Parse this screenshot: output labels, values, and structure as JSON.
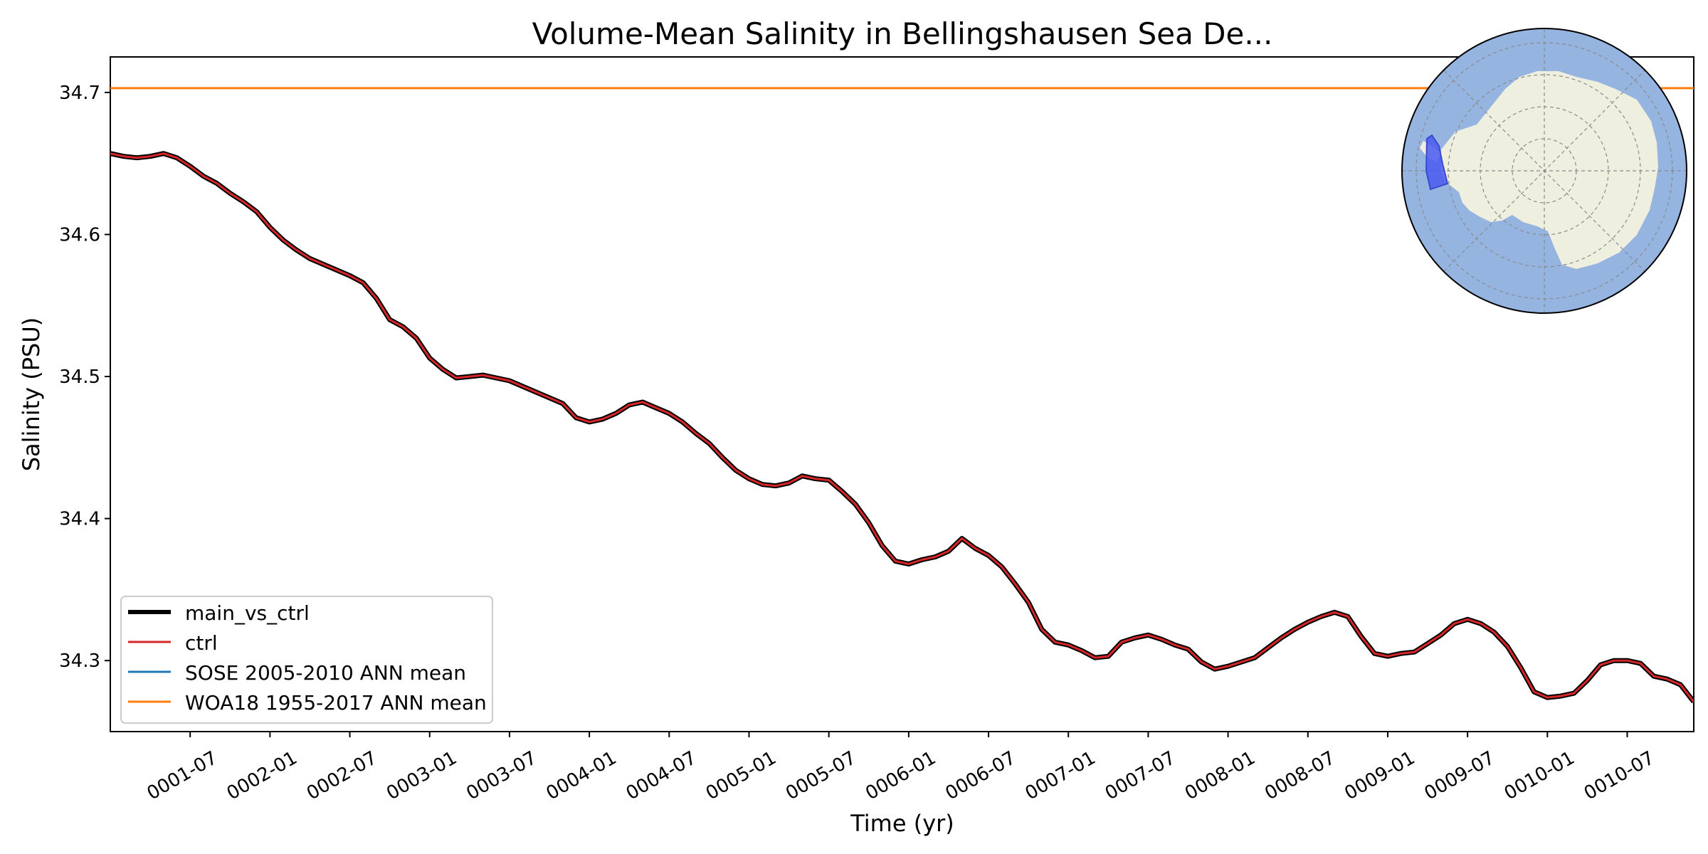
{
  "chart_data": {
    "type": "line",
    "title": "Volume-Mean Salinity in Bellingshausen Sea De...",
    "xlabel": "Time (yr)",
    "ylabel": "Salinity (PSU)",
    "xlim": [
      "0001-01",
      "0010-12"
    ],
    "ylim": [
      34.25,
      34.725
    ],
    "x_ticks": [
      "0001-07",
      "0002-01",
      "0002-07",
      "0003-01",
      "0003-07",
      "0004-01",
      "0004-07",
      "0005-01",
      "0005-07",
      "0006-01",
      "0006-07",
      "0007-01",
      "0007-07",
      "0008-01",
      "0008-07",
      "0009-01",
      "0009-07",
      "0010-01",
      "0010-07"
    ],
    "y_ticks": [
      "34.3",
      "34.4",
      "34.5",
      "34.6",
      "34.7"
    ],
    "grid": false,
    "legend_placement": "lower-left",
    "series": [
      {
        "name": "main_vs_ctrl",
        "color": "#000000",
        "x": [
          "0001-01",
          "0001-02",
          "0001-03",
          "0001-04",
          "0001-05",
          "0001-06",
          "0001-07",
          "0001-08",
          "0001-09",
          "0001-10",
          "0001-11",
          "0001-12",
          "0002-01",
          "0002-02",
          "0002-03",
          "0002-04",
          "0002-05",
          "0002-06",
          "0002-07",
          "0002-08",
          "0002-09",
          "0002-10",
          "0002-11",
          "0002-12",
          "0003-01",
          "0003-02",
          "0003-03",
          "0003-04",
          "0003-05",
          "0003-06",
          "0003-07",
          "0003-08",
          "0003-09",
          "0003-10",
          "0003-11",
          "0003-12",
          "0004-01",
          "0004-02",
          "0004-03",
          "0004-04",
          "0004-05",
          "0004-06",
          "0004-07",
          "0004-08",
          "0004-09",
          "0004-10",
          "0004-11",
          "0004-12",
          "0005-01",
          "0005-02",
          "0005-03",
          "0005-04",
          "0005-05",
          "0005-06",
          "0005-07",
          "0005-08",
          "0005-09",
          "0005-10",
          "0005-11",
          "0005-12",
          "0006-01",
          "0006-02",
          "0006-03",
          "0006-04",
          "0006-05",
          "0006-06",
          "0006-07",
          "0006-08",
          "0006-09",
          "0006-10",
          "0006-11",
          "0006-12",
          "0007-01",
          "0007-02",
          "0007-03",
          "0007-04",
          "0007-05",
          "0007-06",
          "0007-07",
          "0007-08",
          "0007-09",
          "0007-10",
          "0007-11",
          "0007-12",
          "0008-01",
          "0008-02",
          "0008-03",
          "0008-04",
          "0008-05",
          "0008-06",
          "0008-07",
          "0008-08",
          "0008-09",
          "0008-10",
          "0008-11",
          "0008-12",
          "0009-01",
          "0009-02",
          "0009-03",
          "0009-04",
          "0009-05",
          "0009-06",
          "0009-07",
          "0009-08",
          "0009-09",
          "0009-10",
          "0009-11",
          "0009-12",
          "0010-01",
          "0010-02",
          "0010-03",
          "0010-04",
          "0010-05",
          "0010-06",
          "0010-07",
          "0010-08",
          "0010-09",
          "0010-10",
          "0010-11",
          "0010-12"
        ],
        "values": [
          34.657,
          34.655,
          34.654,
          34.655,
          34.657,
          34.654,
          34.648,
          34.641,
          34.636,
          34.629,
          34.623,
          34.616,
          34.605,
          34.596,
          34.589,
          34.583,
          34.579,
          34.575,
          34.571,
          34.566,
          34.555,
          34.54,
          34.535,
          34.527,
          34.513,
          34.505,
          34.499,
          34.5,
          34.501,
          34.499,
          34.497,
          34.493,
          34.489,
          34.485,
          34.481,
          34.471,
          34.468,
          34.47,
          34.474,
          34.48,
          34.482,
          34.478,
          34.474,
          34.468,
          34.46,
          34.453,
          34.443,
          34.434,
          34.428,
          34.424,
          34.423,
          34.425,
          34.43,
          34.428,
          34.427,
          34.419,
          34.41,
          34.397,
          34.381,
          34.37,
          34.368,
          34.371,
          34.373,
          34.377,
          34.386,
          34.379,
          34.374,
          34.366,
          34.354,
          34.341,
          34.322,
          34.313,
          34.311,
          34.307,
          34.302,
          34.303,
          34.313,
          34.316,
          34.318,
          34.315,
          34.311,
          34.308,
          34.299,
          34.294,
          34.296,
          34.299,
          34.302,
          34.309,
          34.316,
          34.322,
          34.327,
          34.331,
          34.334,
          34.331,
          34.317,
          34.305,
          34.303,
          34.305,
          34.306,
          34.312,
          34.318,
          34.326,
          34.329,
          34.326,
          34.32,
          34.31,
          34.295,
          34.278,
          34.274,
          34.275,
          34.277,
          34.286,
          34.297,
          34.3,
          34.3,
          34.298,
          34.289,
          34.287,
          34.283,
          34.271
        ]
      },
      {
        "name": "ctrl",
        "color": "#d62728"
      },
      {
        "name": "SOSE 2005-2010 ANN mean",
        "color": "#1f77b4"
      },
      {
        "name": "WOA18 1955-2017 ANN mean",
        "color": "#ff7f0e",
        "value": 34.703
      }
    ],
    "inset_map": {
      "projection": "south-polar-stereographic",
      "ocean_color": "#96b4e0",
      "land_color": "#efefe0",
      "region_color": "#4a5af0"
    }
  }
}
